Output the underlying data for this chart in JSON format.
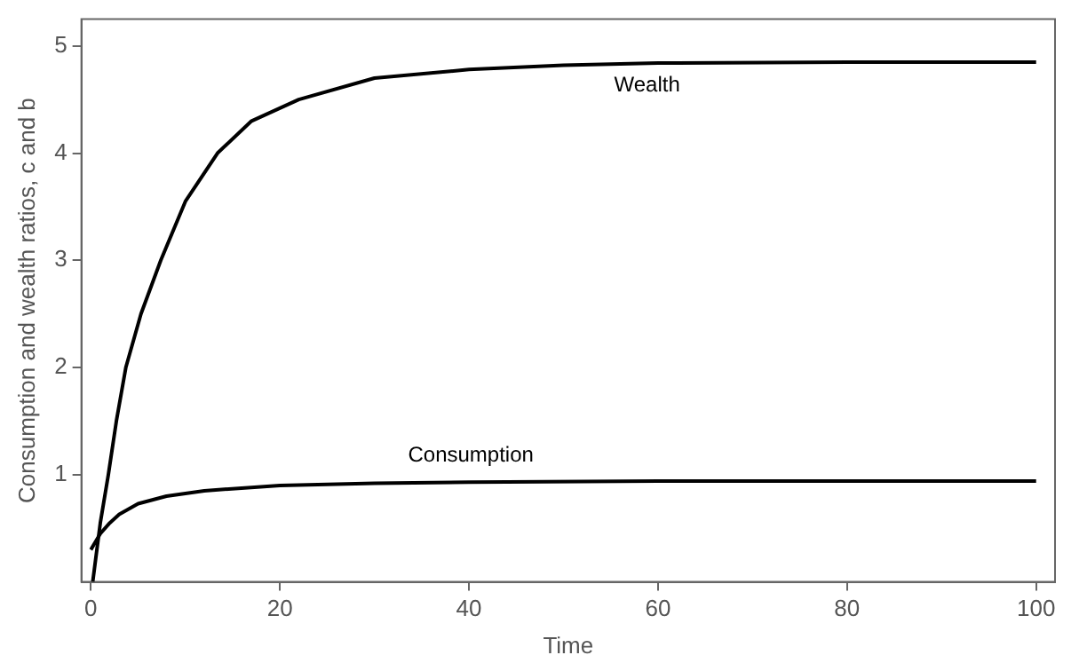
{
  "chart_data": {
    "type": "line",
    "xlabel": "Time",
    "ylabel": "Consumption and wealth ratios, c and b",
    "xlim": [
      -1,
      102
    ],
    "ylim": [
      0,
      5.25
    ],
    "xticks": [
      0,
      20,
      40,
      60,
      80,
      100
    ],
    "yticks": [
      1,
      2,
      3,
      4,
      5
    ],
    "grid": false,
    "legend": false,
    "marker": "none",
    "line_style": "solid",
    "series": [
      {
        "color": "#000000",
        "x": [
          0.2,
          1,
          1.85,
          2.7,
          3.7,
          5.3,
          7.4,
          10,
          13.4,
          17,
          22,
          30,
          40,
          50,
          60,
          80,
          100
        ],
        "values": [
          0,
          0.55,
          1,
          1.5,
          2,
          2.5,
          3,
          3.55,
          4,
          4.3,
          4.5,
          4.7,
          4.78,
          4.82,
          4.84,
          4.85,
          4.85
        ]
      },
      {
        "color": "#000000",
        "x": [
          0,
          1,
          2,
          3,
          5,
          8,
          12,
          20,
          30,
          40,
          60,
          100
        ],
        "values": [
          0.3,
          0.45,
          0.55,
          0.63,
          0.73,
          0.8,
          0.85,
          0.9,
          0.92,
          0.93,
          0.94,
          0.94
        ]
      }
    ],
    "annotations": [
      "Wealth",
      "Consumption"
    ]
  }
}
